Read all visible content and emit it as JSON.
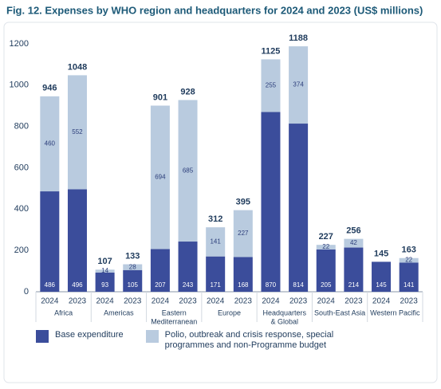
{
  "chart_data": {
    "type": "stacked-bar",
    "title": "Fig. 12. Expenses by WHO region and headquarters for 2024 and 2023 (US$ millions)",
    "categories": [
      "2024",
      "2023",
      "2024",
      "2023",
      "2024",
      "2023",
      "2024",
      "2023",
      "2024",
      "2023",
      "2024",
      "2023",
      "2024",
      "2023"
    ],
    "groups": [
      [
        "Africa"
      ],
      [
        "Americas"
      ],
      [
        "Eastern",
        "Mediterranean"
      ],
      [
        "Europe"
      ],
      [
        "Headquarters",
        "& Global"
      ],
      [
        "South-East Asia"
      ],
      [
        "Western Pacific"
      ]
    ],
    "series": [
      {
        "name": "Base expenditure",
        "color": "#3b4d9b",
        "values": [
          486,
          496,
          93,
          105,
          207,
          243,
          171,
          168,
          870,
          814,
          205,
          214,
          145,
          141
        ]
      },
      {
        "name": "Polio, outbreak and crisis response, special programmes and non-Programme budget",
        "color": "#b9cbdf",
        "values": [
          460,
          552,
          14,
          28,
          694,
          685,
          141,
          227,
          255,
          374,
          22,
          42,
          null,
          22
        ]
      }
    ],
    "totals": [
      946,
      1048,
      107,
      133,
      901,
      928,
      312,
      395,
      1125,
      1188,
      227,
      256,
      145,
      163
    ],
    "ylim": [
      0,
      1200
    ],
    "yticks": [
      0,
      200,
      400,
      600,
      800,
      1000,
      1200
    ]
  }
}
